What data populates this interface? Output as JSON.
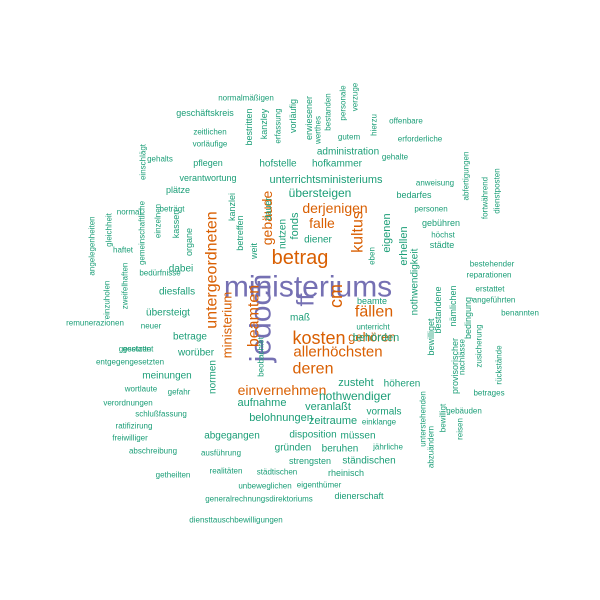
{
  "colors": {
    "purple": "#7570b3",
    "orange": "#d95f02",
    "teal": "#1b9e77"
  },
  "words": [
    {
      "text": "ministeriums",
      "color": "purple"
    },
    {
      "text": "jedoch",
      "color": "purple"
    },
    {
      "text": "ff",
      "color": "purple"
    },
    {
      "text": "betrag",
      "color": "orange"
    },
    {
      "text": "kosten",
      "color": "orange"
    },
    {
      "text": "cm",
      "color": "orange"
    },
    {
      "text": "beamten",
      "color": "orange"
    },
    {
      "text": "untergeordneten",
      "color": "orange"
    },
    {
      "text": "kultus",
      "color": "orange"
    },
    {
      "text": "fällen",
      "color": "orange"
    },
    {
      "text": "deren",
      "color": "orange"
    },
    {
      "text": "allerhöchsten",
      "color": "orange"
    },
    {
      "text": "derjenigen",
      "color": "orange"
    },
    {
      "text": "falle",
      "color": "orange"
    },
    {
      "text": "gebäude",
      "color": "orange"
    },
    {
      "text": "einvernehmen",
      "color": "orange"
    },
    {
      "text": "gehören",
      "color": "orange"
    },
    {
      "text": "ministerium",
      "color": "orange"
    },
    {
      "text": "normalmäßigen",
      "color": "teal"
    },
    {
      "text": "geschäftskreis",
      "color": "teal"
    },
    {
      "text": "zeitlichen",
      "color": "teal"
    },
    {
      "text": "vorläufige",
      "color": "teal"
    },
    {
      "text": "bestritten",
      "color": "teal"
    },
    {
      "text": "kanzley",
      "color": "teal"
    },
    {
      "text": "erfassung",
      "color": "teal"
    },
    {
      "text": "vorläufig",
      "color": "teal"
    },
    {
      "text": "erwiesener",
      "color": "teal"
    },
    {
      "text": "werthes",
      "color": "teal"
    },
    {
      "text": "bestanden",
      "color": "teal"
    },
    {
      "text": "personale",
      "color": "teal"
    },
    {
      "text": "gutem",
      "color": "teal"
    },
    {
      "text": "verzuge",
      "color": "teal"
    },
    {
      "text": "hierzu",
      "color": "teal"
    },
    {
      "text": "offenbare",
      "color": "teal"
    },
    {
      "text": "erforderliche",
      "color": "teal"
    },
    {
      "text": "administration",
      "color": "teal"
    },
    {
      "text": "gehalte",
      "color": "teal"
    },
    {
      "text": "gehalts",
      "color": "teal"
    },
    {
      "text": "einschlägt",
      "color": "teal"
    },
    {
      "text": "pflegen",
      "color": "teal"
    },
    {
      "text": "hofstelle",
      "color": "teal"
    },
    {
      "text": "hofkammer",
      "color": "teal"
    },
    {
      "text": "verantwortung",
      "color": "teal"
    },
    {
      "text": "unterrichtsministeriums",
      "color": "teal"
    },
    {
      "text": "plätze",
      "color": "teal"
    },
    {
      "text": "übersteigen",
      "color": "teal"
    },
    {
      "text": "bedarfes",
      "color": "teal"
    },
    {
      "text": "anweisung",
      "color": "teal"
    },
    {
      "text": "abfertigungen",
      "color": "teal"
    },
    {
      "text": "fortwährend",
      "color": "teal"
    },
    {
      "text": "dienstposten",
      "color": "teal"
    },
    {
      "text": "personen",
      "color": "teal"
    },
    {
      "text": "gebühren",
      "color": "teal"
    },
    {
      "text": "höchst",
      "color": "teal"
    },
    {
      "text": "städte",
      "color": "teal"
    },
    {
      "text": "angelegenheiten",
      "color": "teal"
    },
    {
      "text": "gleichheit",
      "color": "teal"
    },
    {
      "text": "normal",
      "color": "teal"
    },
    {
      "text": "gemeinschaftliche",
      "color": "teal"
    },
    {
      "text": "einzelnen",
      "color": "teal"
    },
    {
      "text": "beträgt",
      "color": "teal"
    },
    {
      "text": "kassen",
      "color": "teal"
    },
    {
      "text": "organe",
      "color": "teal"
    },
    {
      "text": "kanzlei",
      "color": "teal"
    },
    {
      "text": "betreffen",
      "color": "teal"
    },
    {
      "text": "weit",
      "color": "teal"
    },
    {
      "text": "dauer",
      "color": "teal"
    },
    {
      "text": "fonds",
      "color": "teal"
    },
    {
      "text": "nutzen",
      "color": "teal"
    },
    {
      "text": "diener",
      "color": "teal"
    },
    {
      "text": "eigenen",
      "color": "teal"
    },
    {
      "text": "erhellen",
      "color": "teal"
    },
    {
      "text": "eben",
      "color": "teal"
    },
    {
      "text": "haftet",
      "color": "teal"
    },
    {
      "text": "zweifelhaften",
      "color": "teal"
    },
    {
      "text": "einzuholen",
      "color": "teal"
    },
    {
      "text": "dabei",
      "color": "teal"
    },
    {
      "text": "bedürfnisse",
      "color": "teal"
    },
    {
      "text": "diesfalls",
      "color": "teal"
    },
    {
      "text": "übersteigt",
      "color": "teal"
    },
    {
      "text": "nothwendigkeit",
      "color": "teal"
    },
    {
      "text": "bestehender",
      "color": "teal"
    },
    {
      "text": "reparationen",
      "color": "teal"
    },
    {
      "text": "angeführten",
      "color": "teal"
    },
    {
      "text": "erstattet",
      "color": "teal"
    },
    {
      "text": "benannten",
      "color": "teal"
    },
    {
      "text": "remunerazionen",
      "color": "teal"
    },
    {
      "text": "neuer",
      "color": "teal"
    },
    {
      "text": "beamte",
      "color": "teal"
    },
    {
      "text": "maß",
      "color": "teal"
    },
    {
      "text": "unterricht",
      "color": "teal"
    },
    {
      "text": "gestattet",
      "color": "teal"
    },
    {
      "text": "betrage",
      "color": "teal"
    },
    {
      "text": "behörden",
      "color": "teal"
    },
    {
      "text": "bestandene",
      "color": "teal"
    },
    {
      "text": "nämlichen",
      "color": "teal"
    },
    {
      "text": "bedingung",
      "color": "teal"
    },
    {
      "text": "bewilliget",
      "color": "teal"
    },
    {
      "text": "provisorischer",
      "color": "teal"
    },
    {
      "text": "nachlässe",
      "color": "teal"
    },
    {
      "text": "zusicherung",
      "color": "teal"
    },
    {
      "text": "rückstände",
      "color": "teal"
    },
    {
      "text": "gesetzen",
      "color": "teal"
    },
    {
      "text": "beobachtet",
      "color": "teal"
    },
    {
      "text": "entgegengesetzten",
      "color": "teal"
    },
    {
      "text": "meinungen",
      "color": "teal"
    },
    {
      "text": "worüber",
      "color": "teal"
    },
    {
      "text": "zusteht",
      "color": "teal"
    },
    {
      "text": "höheren",
      "color": "teal"
    },
    {
      "text": "betrages",
      "color": "teal"
    },
    {
      "text": "nothwendiger",
      "color": "teal"
    },
    {
      "text": "wortlaute",
      "color": "teal"
    },
    {
      "text": "gefahr",
      "color": "teal"
    },
    {
      "text": "normen",
      "color": "teal"
    },
    {
      "text": "aufnahme",
      "color": "teal"
    },
    {
      "text": "veranlaßt",
      "color": "teal"
    },
    {
      "text": "verordnungen",
      "color": "teal"
    },
    {
      "text": "schlußfassung",
      "color": "teal"
    },
    {
      "text": "belohnungen",
      "color": "teal"
    },
    {
      "text": "zeitraume",
      "color": "teal"
    },
    {
      "text": "vormals",
      "color": "teal"
    },
    {
      "text": "ratifizirung",
      "color": "teal"
    },
    {
      "text": "abgegangen",
      "color": "teal"
    },
    {
      "text": "disposition",
      "color": "teal"
    },
    {
      "text": "müssen",
      "color": "teal"
    },
    {
      "text": "einklange",
      "color": "teal"
    },
    {
      "text": "gebäuden",
      "color": "teal"
    },
    {
      "text": "freiwilliger",
      "color": "teal"
    },
    {
      "text": "gründen",
      "color": "teal"
    },
    {
      "text": "beruhen",
      "color": "teal"
    },
    {
      "text": "jährliche",
      "color": "teal"
    },
    {
      "text": "abschreibung",
      "color": "teal"
    },
    {
      "text": "ausführung",
      "color": "teal"
    },
    {
      "text": "strengsten",
      "color": "teal"
    },
    {
      "text": "ständischen",
      "color": "teal"
    },
    {
      "text": "unterstehenden",
      "color": "teal"
    },
    {
      "text": "abzuändern",
      "color": "teal"
    },
    {
      "text": "bewilligt",
      "color": "teal"
    },
    {
      "text": "reisen",
      "color": "teal"
    },
    {
      "text": "getheilten",
      "color": "teal"
    },
    {
      "text": "realitäten",
      "color": "teal"
    },
    {
      "text": "städtischen",
      "color": "teal"
    },
    {
      "text": "rheinisch",
      "color": "teal"
    },
    {
      "text": "unbeweglichen",
      "color": "teal"
    },
    {
      "text": "eigenthümer",
      "color": "teal"
    },
    {
      "text": "dienerschaft",
      "color": "teal"
    },
    {
      "text": "generalrechnungsdirektoriums",
      "color": "teal"
    },
    {
      "text": "diensttauschbewilligungen",
      "color": "teal"
    }
  ]
}
